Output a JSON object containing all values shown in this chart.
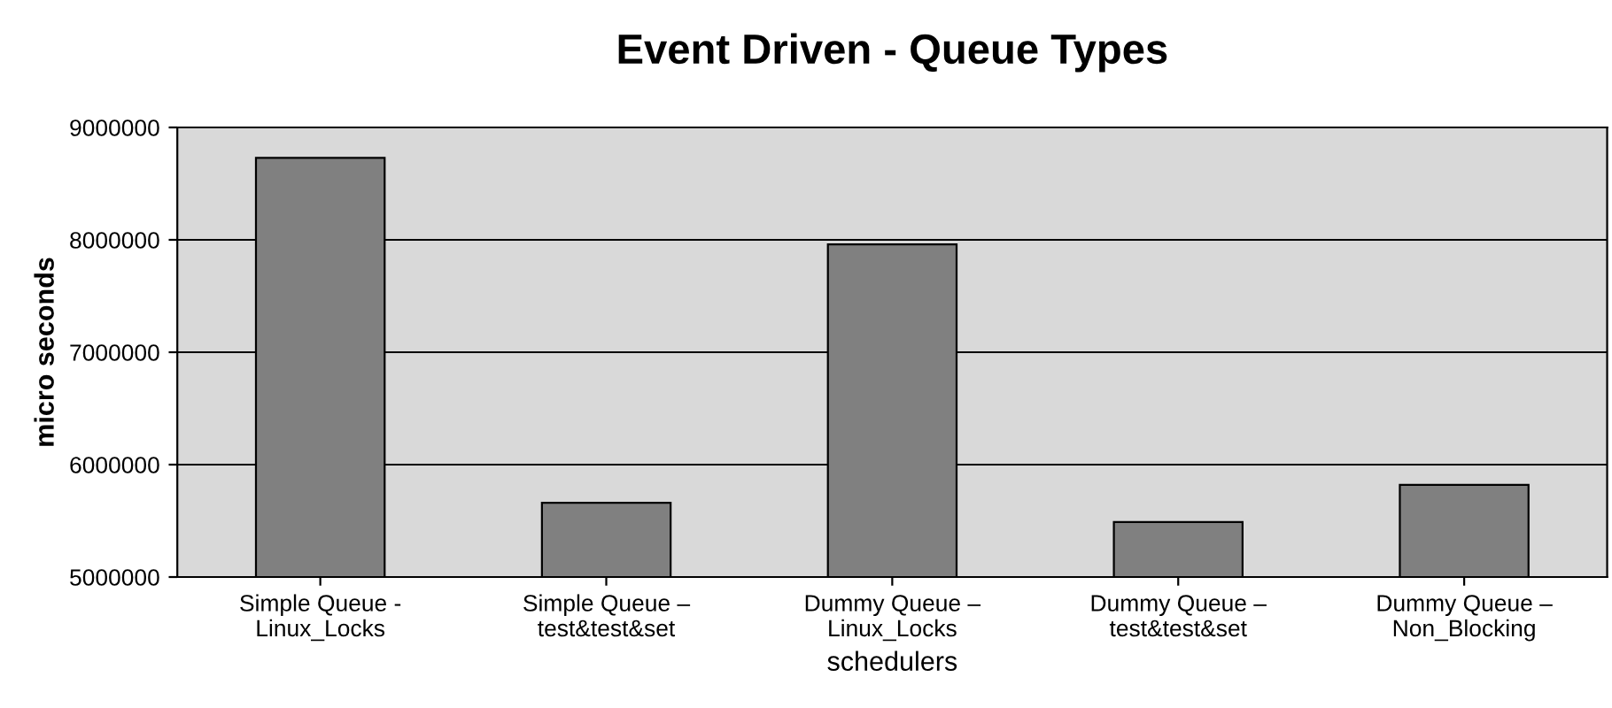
{
  "chart_data": {
    "type": "bar",
    "title": "Event Driven - Queue Types",
    "xlabel": "schedulers",
    "ylabel": "micro seconds",
    "categories": [
      "Simple Queue -\nLinux_Locks",
      "Simple Queue –\ntest&test&set",
      "Dummy Queue –\nLinux_Locks",
      "Dummy Queue –\ntest&test&set",
      "Dummy Queue –\nNon_Blocking"
    ],
    "values": [
      8730000,
      5660000,
      7960000,
      5490000,
      5820000
    ],
    "color": "#808080",
    "ylim": [
      5000000,
      9000000
    ],
    "yticks": [
      5000000,
      6000000,
      7000000,
      8000000,
      9000000
    ],
    "grid": "y",
    "legend": false
  }
}
